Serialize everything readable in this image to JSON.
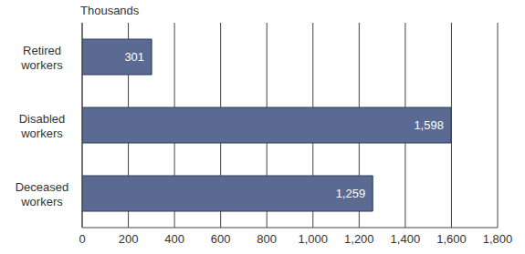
{
  "chart_data": {
    "type": "bar",
    "orientation": "horizontal",
    "x_label": "Thousands",
    "categories": [
      "Retired workers",
      "Disabled workers",
      "Deceased workers"
    ],
    "values": [
      301,
      1598,
      1259
    ],
    "value_labels": [
      "301",
      "1,598",
      "1,259"
    ],
    "data_labels": true,
    "color": "#5b6a93",
    "xlim": [
      0,
      1800
    ],
    "xticks": [
      0,
      200,
      400,
      600,
      800,
      {
        "value": 1000,
        "label": "1,000"
      },
      {
        "value": 1200,
        "label": "1,200"
      },
      {
        "value": 1400,
        "label": "1,400"
      },
      {
        "value": 1600,
        "label": "1,600"
      },
      {
        "value": 1800,
        "label": "1,800"
      }
    ],
    "grid": true
  }
}
